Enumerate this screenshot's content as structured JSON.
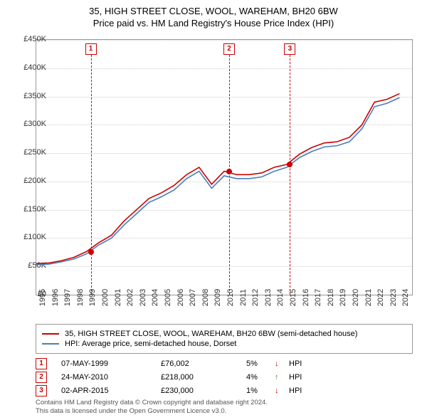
{
  "title_line1": "35, HIGH STREET CLOSE, WOOL, WAREHAM, BH20 6BW",
  "title_line2": "Price paid vs. HM Land Registry's House Price Index (HPI)",
  "chart": {
    "type": "line",
    "background_color": "#ffffff",
    "grid_color": "#cccccc",
    "border_color": "#999999",
    "xlim": [
      1995,
      2025
    ],
    "ylim": [
      0,
      450000
    ],
    "ytick_step": 50000,
    "yticks": [
      "£0",
      "£50K",
      "£100K",
      "£150K",
      "£200K",
      "£250K",
      "£300K",
      "£350K",
      "£400K",
      "£450K"
    ],
    "xticks": [
      "1995",
      "1996",
      "1997",
      "1998",
      "1999",
      "2000",
      "2001",
      "2002",
      "2003",
      "2004",
      "2005",
      "2006",
      "2007",
      "2008",
      "2009",
      "2010",
      "2011",
      "2012",
      "2013",
      "2014",
      "2015",
      "2016",
      "2017",
      "2018",
      "2019",
      "2020",
      "2021",
      "2022",
      "2023",
      "2024"
    ],
    "series": [
      {
        "name": "property",
        "label": "35, HIGH STREET CLOSE, WOOL, WAREHAM, BH20 6BW (semi-detached house)",
        "color": "#cc0000",
        "line_width": 1.6,
        "points": [
          [
            1995,
            55000
          ],
          [
            1996,
            56000
          ],
          [
            1997,
            60000
          ],
          [
            1998,
            66000
          ],
          [
            1999,
            76000
          ],
          [
            2000,
            92000
          ],
          [
            2001,
            105000
          ],
          [
            2002,
            130000
          ],
          [
            2003,
            150000
          ],
          [
            2004,
            170000
          ],
          [
            2005,
            180000
          ],
          [
            2006,
            193000
          ],
          [
            2007,
            212000
          ],
          [
            2008,
            225000
          ],
          [
            2009,
            195000
          ],
          [
            2010,
            218000
          ],
          [
            2011,
            212000
          ],
          [
            2012,
            212000
          ],
          [
            2013,
            215000
          ],
          [
            2014,
            225000
          ],
          [
            2015,
            230000
          ],
          [
            2016,
            248000
          ],
          [
            2017,
            260000
          ],
          [
            2018,
            268000
          ],
          [
            2019,
            270000
          ],
          [
            2020,
            278000
          ],
          [
            2021,
            300000
          ],
          [
            2022,
            340000
          ],
          [
            2023,
            345000
          ],
          [
            2024,
            355000
          ]
        ]
      },
      {
        "name": "hpi",
        "label": "HPI: Average price, semi-detached house, Dorset",
        "color": "#4a7ebb",
        "line_width": 1.6,
        "points": [
          [
            1995,
            53000
          ],
          [
            1996,
            54000
          ],
          [
            1997,
            58000
          ],
          [
            1998,
            63000
          ],
          [
            1999,
            72000
          ],
          [
            2000,
            88000
          ],
          [
            2001,
            100000
          ],
          [
            2002,
            123000
          ],
          [
            2003,
            143000
          ],
          [
            2004,
            163000
          ],
          [
            2005,
            173000
          ],
          [
            2006,
            185000
          ],
          [
            2007,
            205000
          ],
          [
            2008,
            218000
          ],
          [
            2009,
            188000
          ],
          [
            2010,
            210000
          ],
          [
            2011,
            205000
          ],
          [
            2012,
            205000
          ],
          [
            2013,
            208000
          ],
          [
            2014,
            218000
          ],
          [
            2015,
            225000
          ],
          [
            2016,
            242000
          ],
          [
            2017,
            253000
          ],
          [
            2018,
            261000
          ],
          [
            2019,
            263000
          ],
          [
            2020,
            270000
          ],
          [
            2021,
            293000
          ],
          [
            2022,
            332000
          ],
          [
            2023,
            338000
          ],
          [
            2024,
            348000
          ]
        ]
      }
    ],
    "markers": [
      {
        "n": "1",
        "x": 1999.35,
        "y": 76002
      },
      {
        "n": "2",
        "x": 2010.4,
        "y": 218000
      },
      {
        "n": "3",
        "x": 2015.25,
        "y": 230000
      }
    ],
    "marker_box_top_offset": 5,
    "marker_color": "#cc0000"
  },
  "legend_items": [
    {
      "color": "#cc0000",
      "bind": "chart.series.0.label"
    },
    {
      "color": "#4a7ebb",
      "bind": "chart.series.1.label"
    }
  ],
  "sales": [
    {
      "n": "1",
      "date": "07-MAY-1999",
      "price": "£76,002",
      "pct": "5%",
      "arrow": "↓",
      "arrow_color": "#cc0000",
      "hpi": "HPI"
    },
    {
      "n": "2",
      "date": "24-MAY-2010",
      "price": "£218,000",
      "pct": "4%",
      "arrow": "↑",
      "arrow_color": "#2e8b2e",
      "hpi": "HPI"
    },
    {
      "n": "3",
      "date": "02-APR-2015",
      "price": "£230,000",
      "pct": "1%",
      "arrow": "↓",
      "arrow_color": "#cc0000",
      "hpi": "HPI"
    }
  ],
  "attribution_line1": "Contains HM Land Registry data © Crown copyright and database right 2024.",
  "attribution_line2": "This data is licensed under the Open Government Licence v3.0."
}
